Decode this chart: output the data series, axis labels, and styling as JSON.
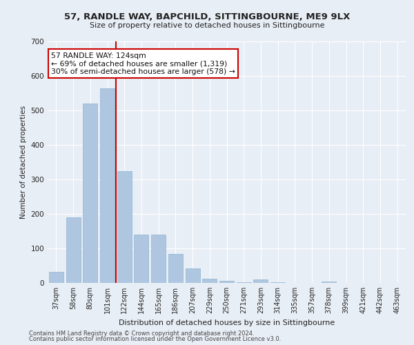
{
  "title1": "57, RANDLE WAY, BAPCHILD, SITTINGBOURNE, ME9 9LX",
  "title2": "Size of property relative to detached houses in Sittingbourne",
  "xlabel": "Distribution of detached houses by size in Sittingbourne",
  "ylabel": "Number of detached properties",
  "categories": [
    "37sqm",
    "58sqm",
    "80sqm",
    "101sqm",
    "122sqm",
    "144sqm",
    "165sqm",
    "186sqm",
    "207sqm",
    "229sqm",
    "250sqm",
    "271sqm",
    "293sqm",
    "314sqm",
    "335sqm",
    "357sqm",
    "378sqm",
    "399sqm",
    "421sqm",
    "442sqm",
    "463sqm"
  ],
  "values": [
    32,
    190,
    520,
    565,
    325,
    140,
    140,
    85,
    42,
    12,
    6,
    2,
    10,
    2,
    0,
    0,
    5,
    0,
    0,
    0,
    0
  ],
  "bar_color": "#aec6df",
  "bar_edge_color": "#8fb4d4",
  "vline_color": "#cc0000",
  "annotation_text": "57 RANDLE WAY: 124sqm\n← 69% of detached houses are smaller (1,319)\n30% of semi-detached houses are larger (578) →",
  "annotation_box_color": "white",
  "annotation_box_edge": "#cc0000",
  "ylim": [
    0,
    700
  ],
  "yticks": [
    0,
    100,
    200,
    300,
    400,
    500,
    600,
    700
  ],
  "footer1": "Contains HM Land Registry data © Crown copyright and database right 2024.",
  "footer2": "Contains public sector information licensed under the Open Government Licence v3.0.",
  "background_color": "#e8eef5",
  "grid_color": "white"
}
